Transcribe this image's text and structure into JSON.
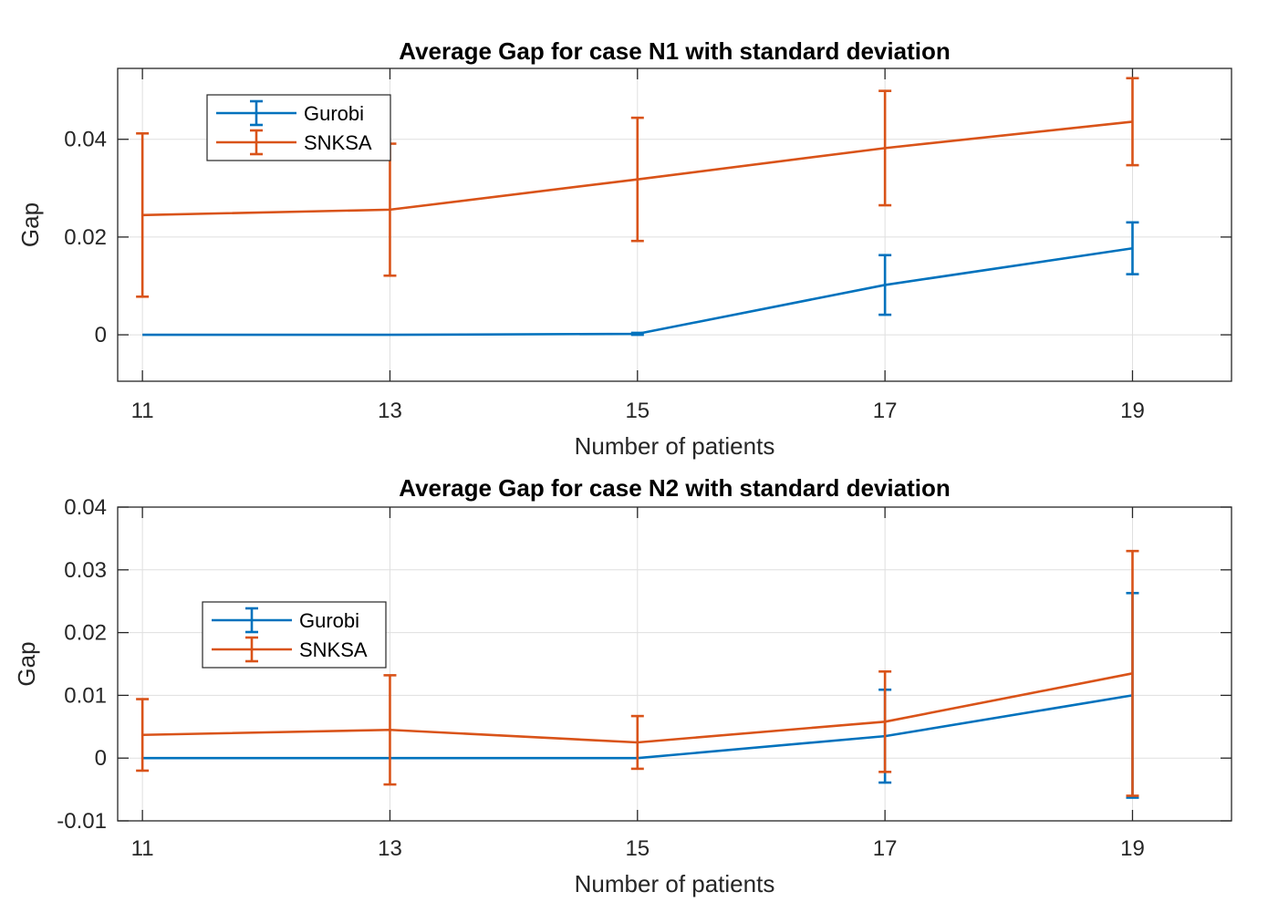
{
  "chart_data": [
    {
      "type": "line",
      "title": "Average Gap for case N1 with standard deviation",
      "xlabel": "Number of patients",
      "ylabel": "Gap",
      "x": [
        11,
        13,
        15,
        17,
        19
      ],
      "x_tick_labels": [
        "11",
        "13",
        "15",
        "17",
        "19"
      ],
      "xlim": [
        10.8,
        19.8
      ],
      "ylim": [
        -0.0095,
        0.0545
      ],
      "y_ticks": [
        0,
        0.02,
        0.04
      ],
      "y_tick_labels": [
        "0",
        "0.02",
        "0.04"
      ],
      "grid": true,
      "legend_position": "top-left",
      "series": [
        {
          "name": "Gurobi",
          "color": "#0072BD",
          "values": [
            0,
            0,
            0.0002,
            0.0102,
            0.0177
          ],
          "error": [
            0,
            0,
            0.0002,
            0.0061,
            0.0053
          ]
        },
        {
          "name": "SNKSA",
          "color": "#D95319",
          "values": [
            0.0245,
            0.0256,
            0.0318,
            0.0382,
            0.0436
          ],
          "error": [
            0.0167,
            0.0135,
            0.0126,
            0.0117,
            0.0089
          ]
        }
      ]
    },
    {
      "type": "line",
      "title": "Average Gap for case N2 with standard deviation",
      "xlabel": "Number of patients",
      "ylabel": "Gap",
      "x": [
        11,
        13,
        15,
        17,
        19
      ],
      "x_tick_labels": [
        "11",
        "13",
        "15",
        "17",
        "19"
      ],
      "xlim": [
        10.8,
        19.8
      ],
      "ylim": [
        -0.01,
        0.04
      ],
      "y_ticks": [
        -0.01,
        0,
        0.01,
        0.02,
        0.03,
        0.04
      ],
      "y_tick_labels": [
        "-0.01",
        "0",
        "0.01",
        "0.02",
        "0.03",
        "0.04"
      ],
      "grid": true,
      "legend_position": "middle-left",
      "series": [
        {
          "name": "Gurobi",
          "color": "#0072BD",
          "values": [
            0,
            0,
            0,
            0.0035,
            0.01
          ],
          "error": [
            0,
            0,
            0,
            0.0074,
            0.0163
          ]
        },
        {
          "name": "SNKSA",
          "color": "#D95319",
          "values": [
            0.0037,
            0.0045,
            0.0025,
            0.0058,
            0.0135
          ],
          "error": [
            0.0057,
            0.0087,
            0.0042,
            0.008,
            0.0195
          ]
        }
      ]
    }
  ]
}
